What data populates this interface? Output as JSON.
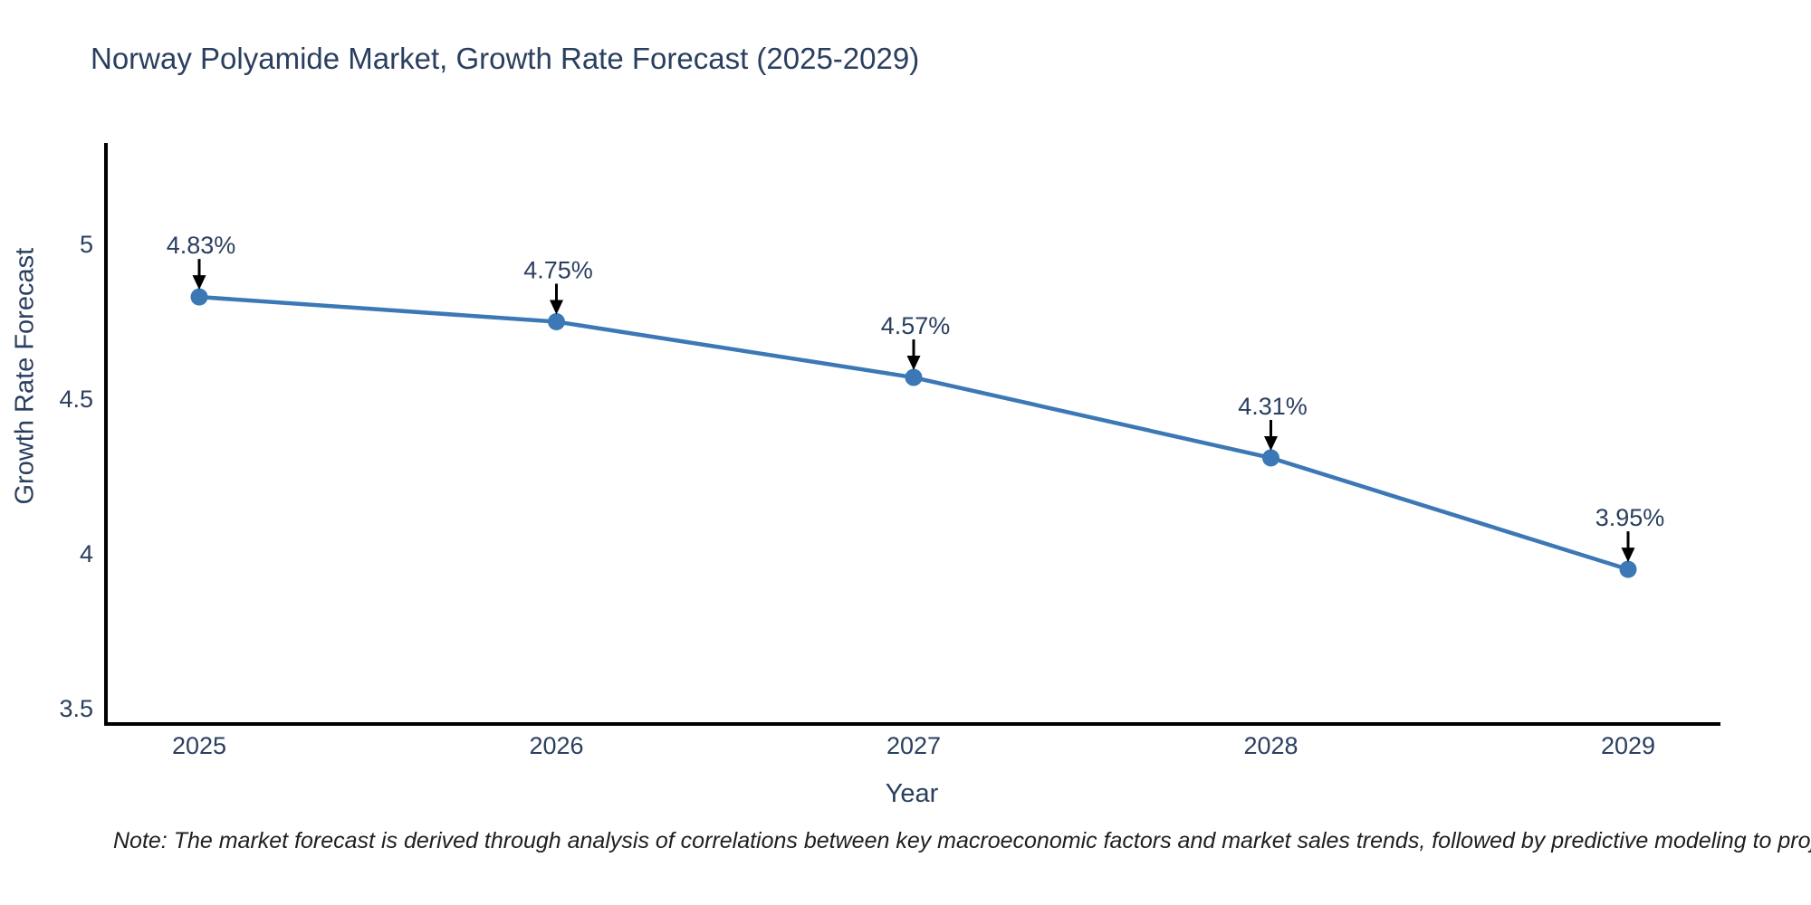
{
  "title": "Norway Polyamide Market, Growth Rate Forecast (2025-2029)",
  "note": "Note: The market forecast is derived through analysis of correlations between key macroeconomic factors and market sales trends, followed by predictive modeling to project future sales",
  "colors": {
    "title_text": "#2a3f5f",
    "axis_text": "#2a3f5f",
    "line": "#3b78b5",
    "marker": "#3b78b5",
    "axis_line": "#000000",
    "annotation_text": "#2a3f5f",
    "annotation_arrow": "#000000",
    "note_text": "#1f1f1f",
    "background": "#ffffff"
  },
  "chart_data": {
    "type": "line",
    "title": "Norway Polyamide Market, Growth Rate Forecast (2025-2029)",
    "xlabel": "Year",
    "ylabel": "Growth Rate Forecast",
    "x": [
      2025,
      2026,
      2027,
      2028,
      2029
    ],
    "y": [
      4.83,
      4.75,
      4.57,
      4.31,
      3.95
    ],
    "series": [
      {
        "name": "Growth Rate Forecast",
        "values": [
          4.83,
          4.75,
          4.57,
          4.31,
          3.95
        ]
      }
    ],
    "point_labels": [
      "4.83%",
      "4.75%",
      "4.57%",
      "4.31%",
      "3.95%"
    ],
    "xtick_labels": [
      "2025",
      "2026",
      "2027",
      "2028",
      "2029"
    ],
    "ytick_labels": [
      "3.5",
      "4",
      "4.5",
      "5"
    ],
    "yticks": [
      3.5,
      4.0,
      4.5,
      5.0
    ],
    "ylim": [
      3.45,
      5.33
    ],
    "xlim": [
      2024.74,
      2029.26
    ],
    "grid": false,
    "legend": false,
    "marker_style": "circle",
    "annotation_style": "value label with black down-arrow above each point"
  }
}
